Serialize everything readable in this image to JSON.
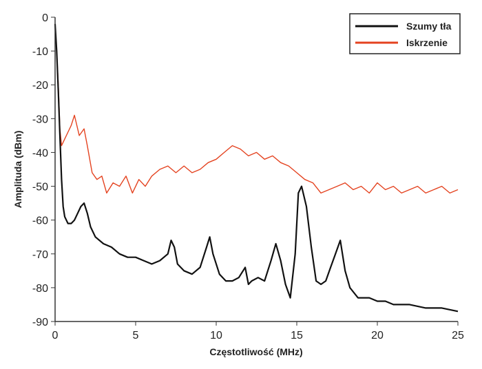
{
  "chart_data": {
    "type": "line",
    "xlabel": "Częstotliwość (MHz)",
    "ylabel": "Amplituda (dBm)",
    "xlim": [
      0,
      25
    ],
    "ylim": [
      -90,
      0
    ],
    "x_ticks": [
      0,
      5,
      10,
      15,
      20,
      25
    ],
    "y_ticks": [
      0,
      -10,
      -20,
      -30,
      -40,
      -50,
      -60,
      -70,
      -80,
      -90
    ],
    "grid": false,
    "legend_position": "top-right",
    "series": [
      {
        "name": "Szumy tła",
        "color": "#111111",
        "x": [
          0,
          0.1,
          0.2,
          0.3,
          0.4,
          0.5,
          0.6,
          0.8,
          1.0,
          1.2,
          1.4,
          1.6,
          1.8,
          2.0,
          2.2,
          2.5,
          3.0,
          3.5,
          4.0,
          4.5,
          5.0,
          5.5,
          6.0,
          6.5,
          7.0,
          7.2,
          7.4,
          7.6,
          8.0,
          8.5,
          9.0,
          9.4,
          9.6,
          9.8,
          10.2,
          10.6,
          11.0,
          11.4,
          11.8,
          12.0,
          12.2,
          12.6,
          13.0,
          13.4,
          13.7,
          14.0,
          14.3,
          14.6,
          14.9,
          15.1,
          15.3,
          15.6,
          15.9,
          16.2,
          16.5,
          16.8,
          17.1,
          17.4,
          17.7,
          18.0,
          18.3,
          18.8,
          19.5,
          20.0,
          20.5,
          21.0,
          22.0,
          23.0,
          24.0,
          25.0
        ],
        "values": [
          -2,
          -10,
          -22,
          -35,
          -48,
          -56,
          -59,
          -61,
          -61,
          -60,
          -58,
          -56,
          -55,
          -58,
          -62,
          -65,
          -67,
          -68,
          -70,
          -71,
          -71,
          -72,
          -73,
          -72,
          -70,
          -66,
          -68,
          -73,
          -75,
          -76,
          -74,
          -68,
          -65,
          -70,
          -76,
          -78,
          -78,
          -77,
          -74,
          -79,
          -78,
          -77,
          -78,
          -72,
          -67,
          -72,
          -79,
          -83,
          -70,
          -52,
          -50,
          -56,
          -68,
          -78,
          -79,
          -78,
          -74,
          -70,
          -66,
          -75,
          -80,
          -83,
          -83,
          -84,
          -84,
          -85,
          -85,
          -86,
          -86,
          -87
        ]
      },
      {
        "name": "Iskrzenie",
        "color": "#e4421f",
        "x": [
          0,
          0.1,
          0.2,
          0.3,
          0.4,
          0.6,
          0.8,
          1.0,
          1.2,
          1.5,
          1.8,
          2.0,
          2.3,
          2.6,
          2.9,
          3.2,
          3.6,
          4.0,
          4.4,
          4.8,
          5.2,
          5.6,
          6.0,
          6.5,
          7.0,
          7.5,
          8.0,
          8.5,
          9.0,
          9.5,
          10.0,
          10.5,
          11.0,
          11.5,
          12.0,
          12.5,
          13.0,
          13.5,
          14.0,
          14.5,
          15.0,
          15.5,
          16.0,
          16.5,
          17.0,
          17.5,
          18.0,
          18.5,
          19.0,
          19.5,
          20.0,
          20.5,
          21.0,
          21.5,
          22.0,
          22.5,
          23.0,
          23.5,
          24.0,
          24.5,
          25.0
        ],
        "values": [
          -2,
          -10,
          -20,
          -33,
          -38,
          -36,
          -34,
          -32,
          -29,
          -35,
          -33,
          -38,
          -46,
          -48,
          -47,
          -52,
          -49,
          -50,
          -47,
          -52,
          -48,
          -50,
          -47,
          -45,
          -44,
          -46,
          -44,
          -46,
          -45,
          -43,
          -42,
          -40,
          -38,
          -39,
          -41,
          -40,
          -42,
          -41,
          -43,
          -44,
          -46,
          -48,
          -49,
          -52,
          -51,
          -50,
          -49,
          -51,
          -50,
          -52,
          -49,
          -51,
          -50,
          -52,
          -51,
          -50,
          -52,
          -51,
          -50,
          -52,
          -51
        ]
      }
    ]
  }
}
